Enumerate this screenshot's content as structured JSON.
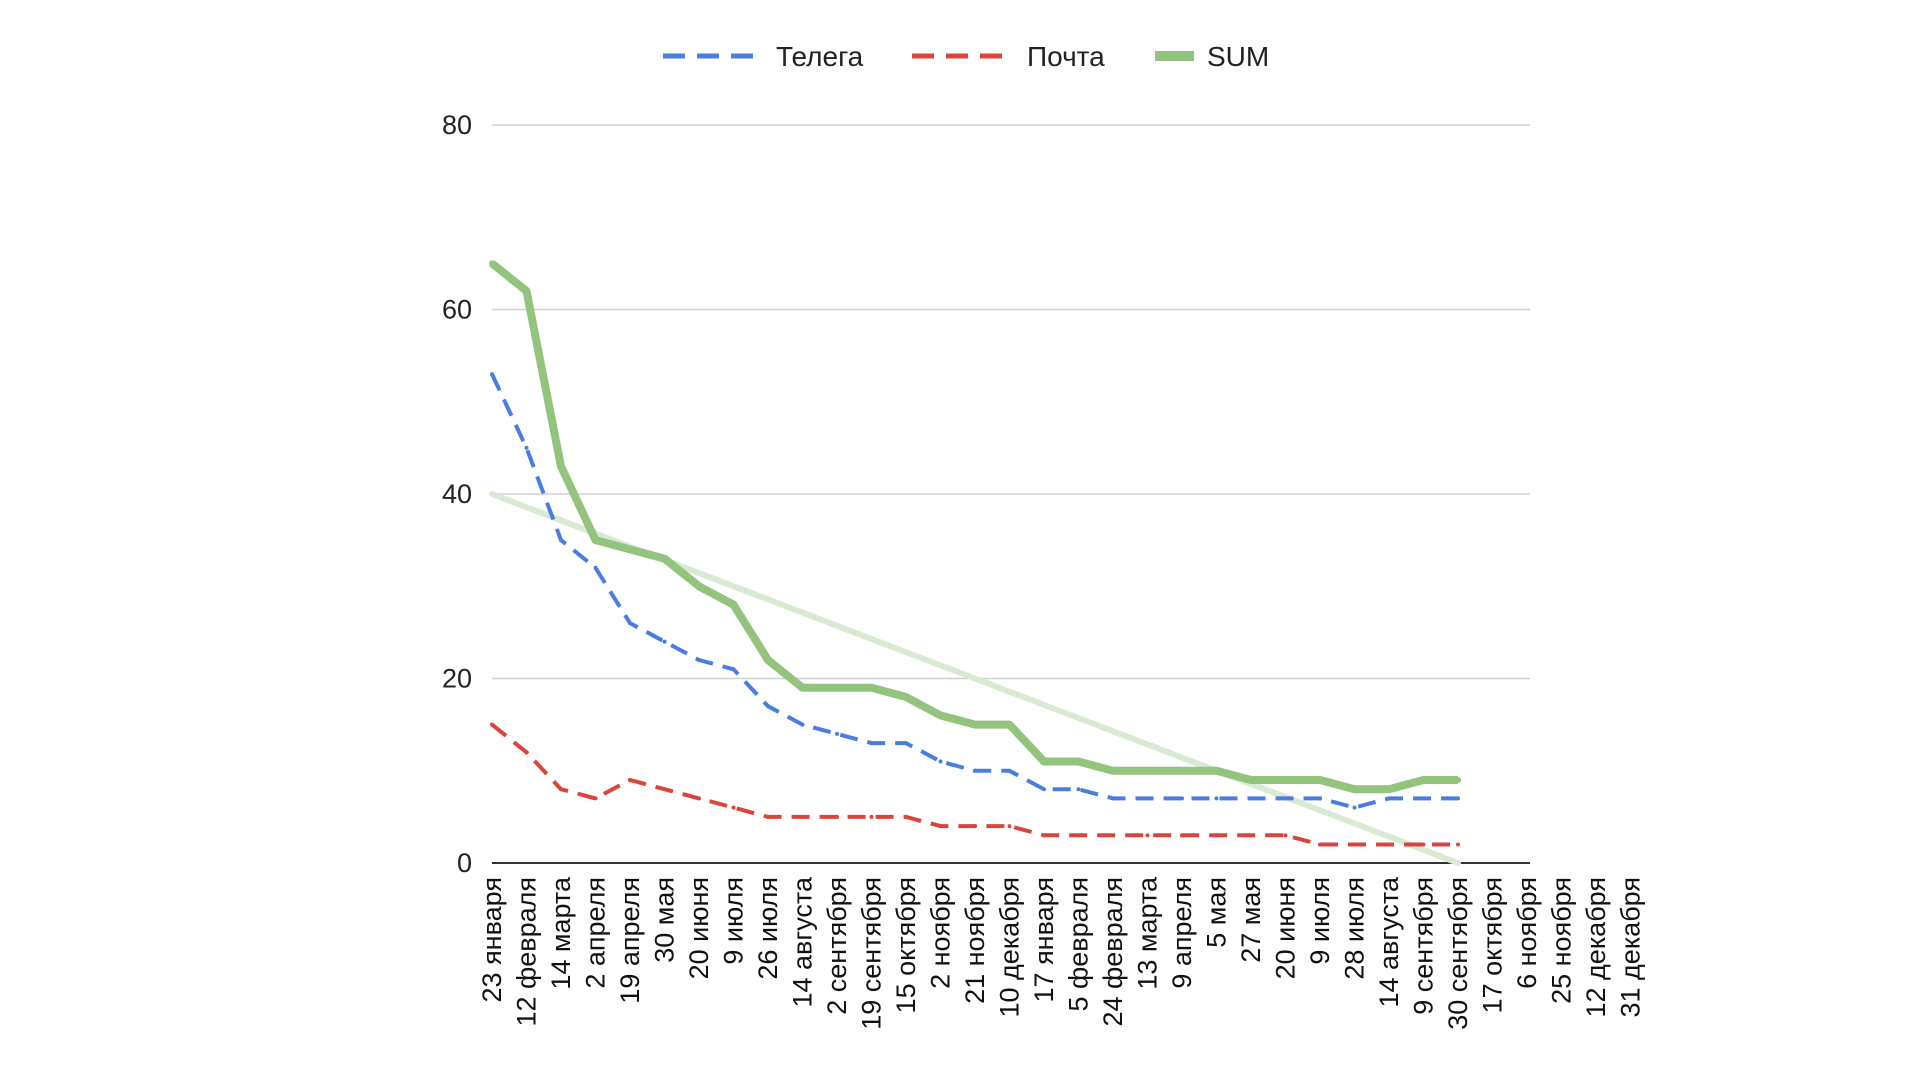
{
  "chart_data": {
    "type": "line",
    "title": "",
    "xlabel": "",
    "ylabel": "",
    "ylim": [
      0,
      80
    ],
    "y_ticks": [
      0,
      20,
      40,
      60,
      80
    ],
    "grid": true,
    "legend_position": "top-center",
    "x_labels": [
      "23 января",
      "12 февраля",
      "14 марта",
      "2 апреля",
      "19 апреля",
      "30 мая",
      "20 июня",
      "9 июля",
      "26 июля",
      "14 августа",
      "2 сентября",
      "19 сентября",
      "15 октября",
      "2 ноября",
      "21 ноября",
      "10 декабря",
      "17 января",
      "5 февраля",
      "24 февраля",
      "13 марта",
      "9 апреля",
      "5 мая",
      "27 мая",
      "20 июня",
      "9 июля",
      "28 июля",
      "14 августа",
      "9 сентября",
      "30 сентября",
      "17 октября",
      "6 ноября",
      "25 ноября",
      "12 декабря",
      "31 декабря"
    ],
    "series": [
      {
        "name": "Телега",
        "color": "#4a7de0",
        "style": "dashed",
        "values": [
          53,
          45,
          35,
          32,
          26,
          24,
          22,
          21,
          17,
          15,
          14,
          13,
          13,
          11,
          10,
          10,
          8,
          8,
          7,
          7,
          7,
          7,
          7,
          7,
          7,
          6,
          7,
          7,
          7,
          null,
          null,
          null,
          null,
          null
        ]
      },
      {
        "name": "Почта",
        "color": "#d9453b",
        "style": "dashed",
        "values": [
          15,
          12,
          8,
          7,
          9,
          8,
          7,
          6,
          5,
          5,
          5,
          5,
          5,
          4,
          4,
          4,
          3,
          3,
          3,
          3,
          3,
          3,
          3,
          3,
          2,
          2,
          2,
          2,
          2,
          null,
          null,
          null,
          null,
          null
        ]
      },
      {
        "name": "SUM",
        "color": "#93c47d",
        "style": "solid",
        "values": [
          65,
          62,
          43,
          35,
          34,
          33,
          30,
          28,
          22,
          19,
          19,
          19,
          18,
          16,
          15,
          15,
          11,
          11,
          10,
          10,
          10,
          10,
          9,
          9,
          9,
          8,
          8,
          9,
          9,
          null,
          null,
          null,
          null,
          null
        ]
      }
    ],
    "trendline": {
      "color": "#d9ead3",
      "start": {
        "x": "23 января",
        "y": 40
      },
      "end": {
        "x": "30 сентября",
        "y": 0
      }
    }
  }
}
